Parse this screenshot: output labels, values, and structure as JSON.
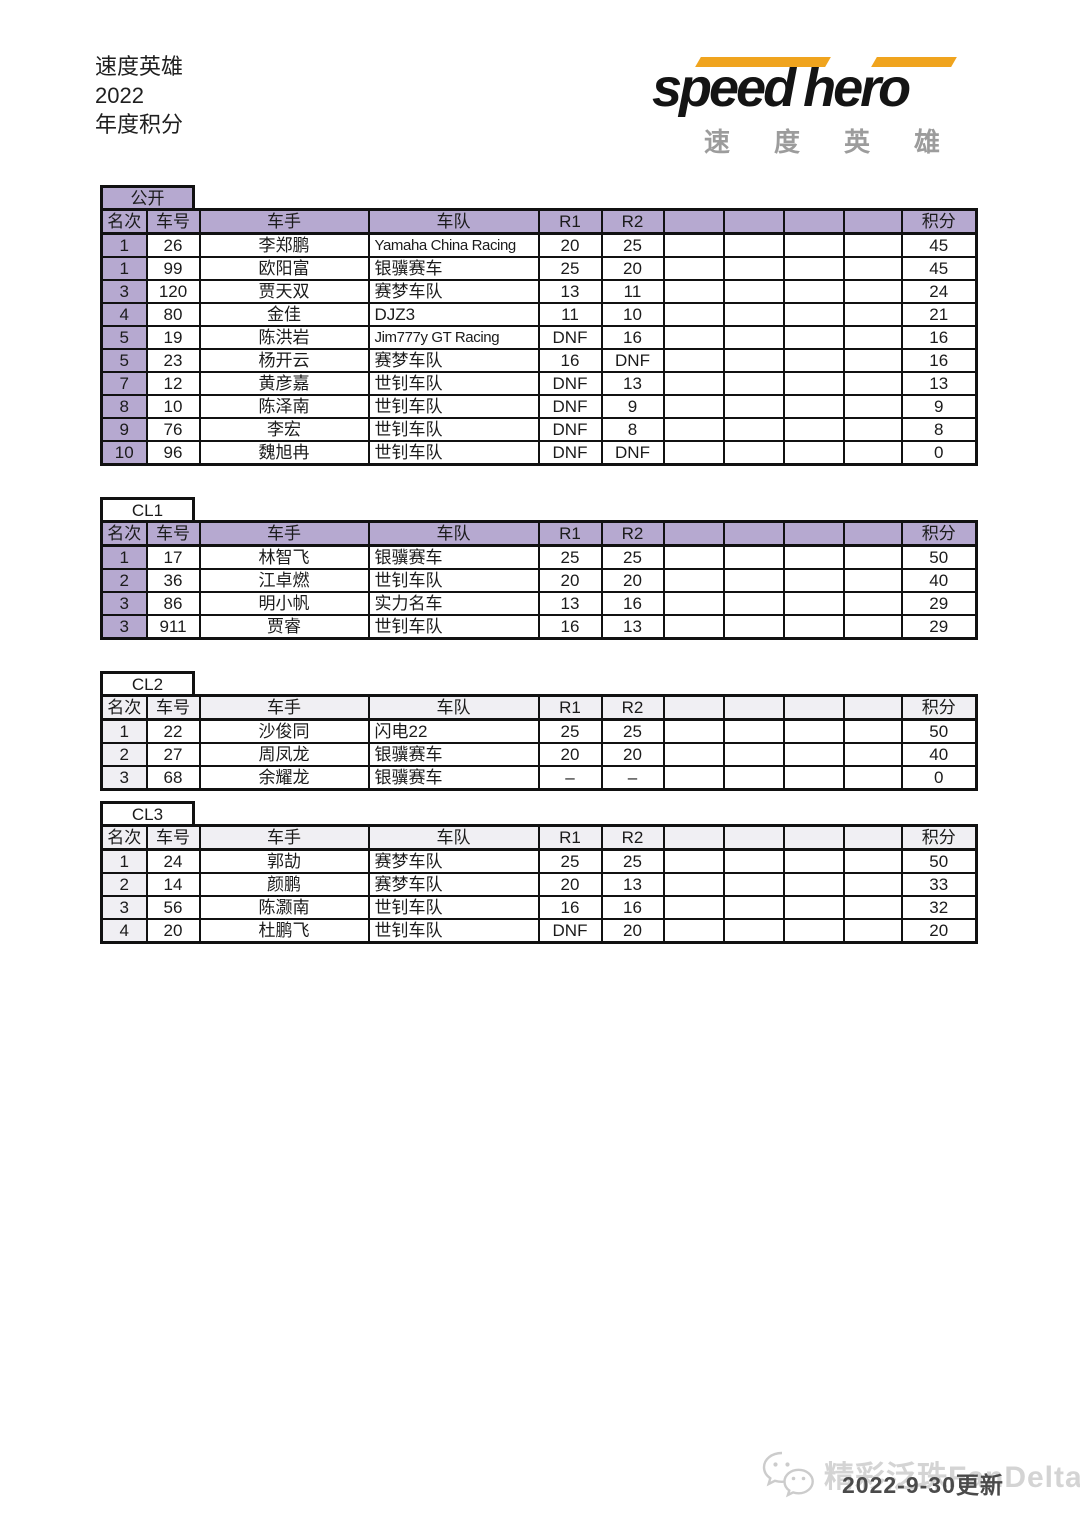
{
  "page": {
    "title_lines": [
      "速度英雄",
      "2022",
      "年度积分"
    ]
  },
  "logo": {
    "word1": "speed",
    "word2": "hero",
    "subtext": "速度英雄"
  },
  "colors": {
    "accent_yellow": "#f0a41e",
    "header_purple": "#b6a9d0",
    "header_light": "#f0eff3",
    "border_black": "#111111",
    "watermark_gray": "#d4d4d4",
    "date_gray": "#4a4a4a"
  },
  "columns": [
    "名次",
    "车号",
    "车手",
    "车队",
    "R1",
    "R2",
    "",
    "",
    "",
    "",
    "积分"
  ],
  "tables": [
    {
      "title": "公开",
      "header_fill": "purple",
      "title_fill": "purple",
      "rows": [
        {
          "rank": "1",
          "car": "26",
          "driver": "李郑鹏",
          "team": "Yamaha China Racing",
          "r1": "20",
          "r2": "25",
          "points": "45"
        },
        {
          "rank": "1",
          "car": "99",
          "driver": "欧阳富",
          "team": "银骥赛车",
          "r1": "25",
          "r2": "20",
          "points": "45"
        },
        {
          "rank": "3",
          "car": "120",
          "driver": "贾天双",
          "team": "赛梦车队",
          "r1": "13",
          "r2": "11",
          "points": "24"
        },
        {
          "rank": "4",
          "car": "80",
          "driver": "金佳",
          "team": "DJZ3",
          "r1": "11",
          "r2": "10",
          "points": "21"
        },
        {
          "rank": "5",
          "car": "19",
          "driver": "陈洪岩",
          "team": "Jim777y GT Racing",
          "r1": "DNF",
          "r2": "16",
          "points": "16"
        },
        {
          "rank": "5",
          "car": "23",
          "driver": "杨开云",
          "team": "赛梦车队",
          "r1": "16",
          "r2": "DNF",
          "points": "16"
        },
        {
          "rank": "7",
          "car": "12",
          "driver": "黄彦嘉",
          "team": "世钊车队",
          "r1": "DNF",
          "r2": "13",
          "points": "13"
        },
        {
          "rank": "8",
          "car": "10",
          "driver": "陈泽南",
          "team": "世钊车队",
          "r1": "DNF",
          "r2": "9",
          "points": "9"
        },
        {
          "rank": "9",
          "car": "76",
          "driver": "李宏",
          "team": "世钊车队",
          "r1": "DNF",
          "r2": "8",
          "points": "8"
        },
        {
          "rank": "10",
          "car": "96",
          "driver": "魏旭冉",
          "team": "世钊车队",
          "r1": "DNF",
          "r2": "DNF",
          "points": "0"
        }
      ]
    },
    {
      "title": "CL1",
      "header_fill": "purple",
      "title_fill": "white",
      "rows": [
        {
          "rank": "1",
          "car": "17",
          "driver": "林智飞",
          "team": "银骥赛车",
          "r1": "25",
          "r2": "25",
          "points": "50"
        },
        {
          "rank": "2",
          "car": "36",
          "driver": "江卓燃",
          "team": "世钊车队",
          "r1": "20",
          "r2": "20",
          "points": "40"
        },
        {
          "rank": "3",
          "car": "86",
          "driver": "明小帆",
          "team": "实力名车",
          "r1": "13",
          "r2": "16",
          "points": "29"
        },
        {
          "rank": "3",
          "car": "911",
          "driver": "贾睿",
          "team": "世钊车队",
          "r1": "16",
          "r2": "13",
          "points": "29"
        }
      ]
    },
    {
      "title": "CL2",
      "header_fill": "light",
      "title_fill": "white",
      "rows": [
        {
          "rank": "1",
          "car": "22",
          "driver": "沙俊同",
          "team": "闪电22",
          "r1": "25",
          "r2": "25",
          "points": "50"
        },
        {
          "rank": "2",
          "car": "27",
          "driver": "周凤龙",
          "team": "银骥赛车",
          "r1": "20",
          "r2": "20",
          "points": "40"
        },
        {
          "rank": "3",
          "car": "68",
          "driver": "余耀龙",
          "team": "银骥赛车",
          "r1": "–",
          "r2": "–",
          "points": "0"
        }
      ]
    },
    {
      "title": "CL3",
      "header_fill": "light",
      "title_fill": "white",
      "rows": [
        {
          "rank": "1",
          "car": "24",
          "driver": "郭劼",
          "team": "赛梦车队",
          "r1": "25",
          "r2": "25",
          "points": "50"
        },
        {
          "rank": "2",
          "car": "14",
          "driver": "颜鹏",
          "team": "赛梦车队",
          "r1": "20",
          "r2": "13",
          "points": "33"
        },
        {
          "rank": "3",
          "car": "56",
          "driver": "陈灏南",
          "team": "世钊车队",
          "r1": "16",
          "r2": "16",
          "points": "32"
        },
        {
          "rank": "4",
          "car": "20",
          "driver": "杜鹏飞",
          "team": "世钊车队",
          "r1": "DNF",
          "r2": "20",
          "points": "20"
        }
      ]
    }
  ],
  "footer": {
    "watermark": "精彩泛珠FanDelta",
    "update_text": "2022-9-30更新"
  }
}
